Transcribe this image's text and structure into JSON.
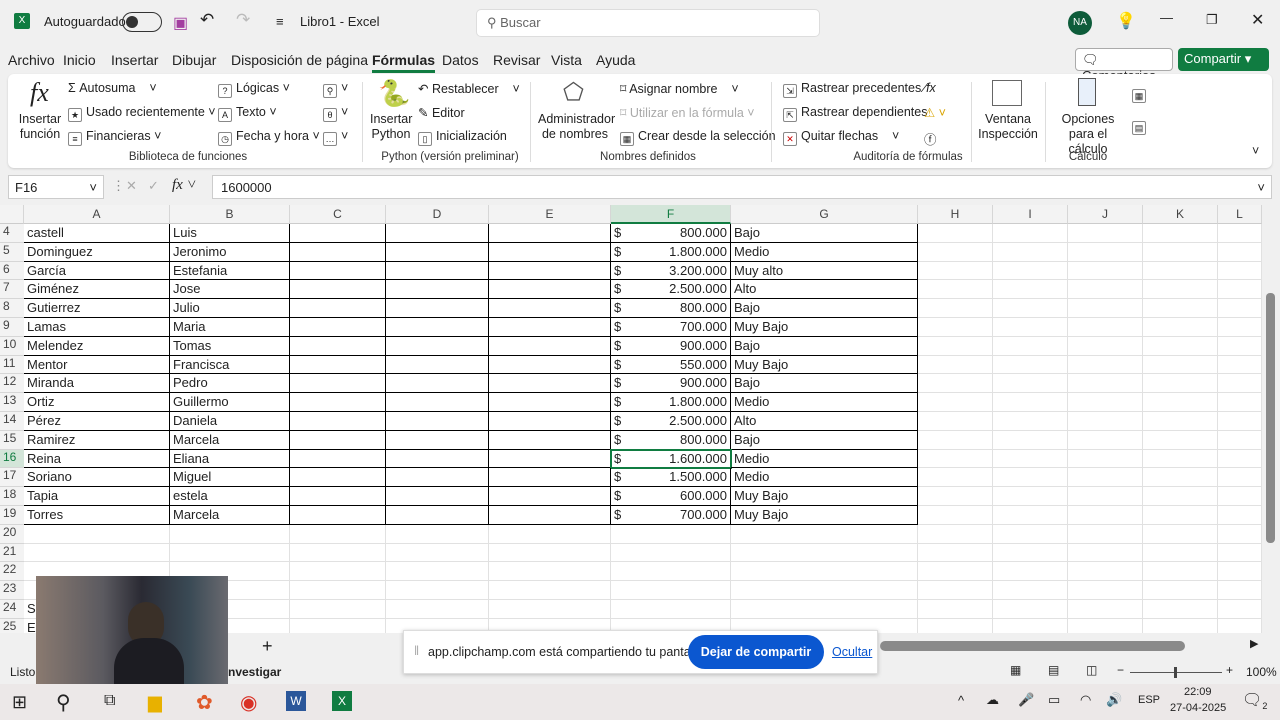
{
  "title": {
    "autosave": "Autoguardado",
    "doc": "Libro1  -  Excel",
    "search_placeholder": "Buscar",
    "avatar": "NA"
  },
  "menu": [
    "Archivo",
    "Inicio",
    "Insertar",
    "Dibujar",
    "Disposición de página",
    "Fórmulas",
    "Datos",
    "Revisar",
    "Vista",
    "Ayuda"
  ],
  "menu_active": "Fórmulas",
  "buttons": {
    "comments": "Comentarios",
    "share": "Compartir"
  },
  "ribbon": {
    "insert_function": "Insertar función",
    "autosum": "Autosuma",
    "recent": "Usado recientemente",
    "financial": "Financieras",
    "logical": "Lógicas",
    "text": "Texto",
    "datetime": "Fecha y hora",
    "group1": "Biblioteca de funciones",
    "insert_python": "Insertar Python",
    "reset": "Restablecer",
    "editor": "Editor",
    "init": "Inicialización",
    "group2": "Python (versión preliminar)",
    "name_manager": "Administrador de nombres",
    "define_name": "Asignar nombre",
    "use_formula": "Utilizar en la fórmula",
    "create_sel": "Crear desde la selección",
    "group3": "Nombres definidos",
    "trace_prec": "Rastrear precedentes",
    "trace_dep": "Rastrear dependientes",
    "remove_arrows": "Quitar flechas",
    "group4": "Auditoría de fórmulas",
    "watch": "Ventana Inspección",
    "calc_options": "Opciones para el cálculo",
    "group5": "Cálculo"
  },
  "formula_bar": {
    "name_box": "F16",
    "value": "1600000"
  },
  "columns": [
    "A",
    "B",
    "C",
    "D",
    "E",
    "F",
    "G",
    "H",
    "I",
    "J",
    "K",
    "L"
  ],
  "selected_cell": "F16",
  "rows": [
    {
      "n": 4,
      "a": "castell",
      "b": "Luis",
      "f": "800.000",
      "g": "Bajo"
    },
    {
      "n": 5,
      "a": "Dominguez",
      "b": "Jeronimo",
      "f": "1.800.000",
      "g": "Medio"
    },
    {
      "n": 6,
      "a": "García",
      "b": "Estefania",
      "f": "3.200.000",
      "g": "Muy alto"
    },
    {
      "n": 7,
      "a": "Giménez",
      "b": "Jose",
      "f": "2.500.000",
      "g": "Alto"
    },
    {
      "n": 8,
      "a": "Gutierrez",
      "b": "Julio",
      "f": "800.000",
      "g": "Bajo"
    },
    {
      "n": 9,
      "a": "Lamas",
      "b": "Maria",
      "f": "700.000",
      "g": "Muy Bajo"
    },
    {
      "n": 10,
      "a": "Melendez",
      "b": "Tomas",
      "f": "900.000",
      "g": "Bajo"
    },
    {
      "n": 11,
      "a": "Mentor",
      "b": "Francisca",
      "f": "550.000",
      "g": "Muy Bajo"
    },
    {
      "n": 12,
      "a": "Miranda",
      "b": "Pedro",
      "f": "900.000",
      "g": "Bajo"
    },
    {
      "n": 13,
      "a": "Ortiz",
      "b": "Guillermo",
      "f": "1.800.000",
      "g": "Medio"
    },
    {
      "n": 14,
      "a": "Pérez",
      "b": "Daniela",
      "f": "2.500.000",
      "g": "Alto"
    },
    {
      "n": 15,
      "a": "Ramirez",
      "b": "Marcela",
      "f": "800.000",
      "g": "Bajo"
    },
    {
      "n": 16,
      "a": "Reina",
      "b": "Eliana",
      "f": "1.600.000",
      "g": "Medio"
    },
    {
      "n": 17,
      "a": "Soriano",
      "b": "Miguel",
      "f": "1.500.000",
      "g": "Medio"
    },
    {
      "n": 18,
      "a": "Tapia",
      "b": "estela",
      "f": "600.000",
      "g": "Muy Bajo"
    },
    {
      "n": 19,
      "a": "Torres",
      "b": "Marcela",
      "f": "700.000",
      "g": "Muy Bajo"
    },
    {
      "n": 20
    },
    {
      "n": 21
    },
    {
      "n": 22
    },
    {
      "n": 23
    },
    {
      "n": 24,
      "a": "Su"
    },
    {
      "n": 25,
      "a": "Er"
    }
  ],
  "currency": "$",
  "status": {
    "ready": "Listo",
    "investigate": "nvestigar",
    "zoom": "100%"
  },
  "share_bar": {
    "message": "app.clipchamp.com está compartiendo tu pantalla.",
    "stop": "Dejar de compartir",
    "hide": "Ocultar"
  },
  "taskbar": {
    "lang": "ESP",
    "time": "22:09",
    "date": "27-04-2025",
    "notifications": "2"
  }
}
